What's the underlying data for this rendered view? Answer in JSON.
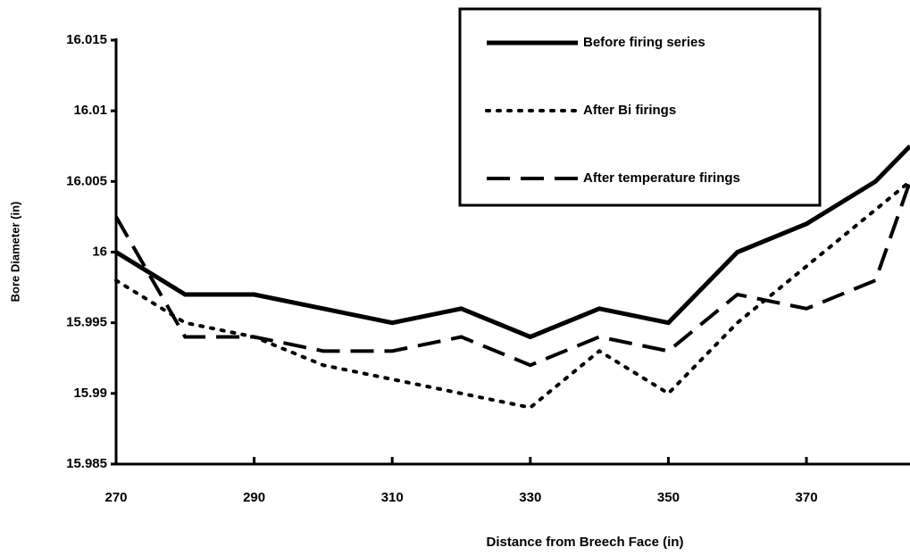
{
  "chart_data": {
    "type": "line",
    "xlabel": "Distance from Breech Face (in)",
    "ylabel": "Bore Diameter (in)",
    "x": [
      270,
      280,
      290,
      300,
      310,
      320,
      330,
      340,
      350,
      360,
      370,
      380,
      385
    ],
    "series": [
      {
        "name": "Before firing series",
        "color": "#000000",
        "style": "solid",
        "values": [
          16.0,
          15.997,
          15.997,
          15.996,
          15.995,
          15.996,
          15.994,
          15.996,
          15.995,
          16.0,
          16.002,
          16.005,
          16.0075
        ]
      },
      {
        "name": "After Bi firings",
        "color": "#000000",
        "style": "dotted",
        "values": [
          15.998,
          15.995,
          15.994,
          15.992,
          15.991,
          15.99,
          15.989,
          15.993,
          15.99,
          15.995,
          15.999,
          16.003,
          16.005
        ]
      },
      {
        "name": "After temperature firings",
        "color": "#000000",
        "style": "dashed",
        "values": [
          16.0025,
          15.994,
          15.994,
          15.993,
          15.993,
          15.994,
          15.992,
          15.994,
          15.993,
          15.997,
          15.996,
          15.998,
          16.005
        ]
      }
    ],
    "xlim": [
      270,
      385
    ],
    "xticks": [
      270,
      290,
      310,
      330,
      350,
      370
    ],
    "ylim": [
      15.985,
      16.015
    ],
    "yticks": [
      15.985,
      15.99,
      15.995,
      16,
      16.005,
      16.01,
      16.015
    ],
    "legend": "upper right",
    "grid": false
  }
}
